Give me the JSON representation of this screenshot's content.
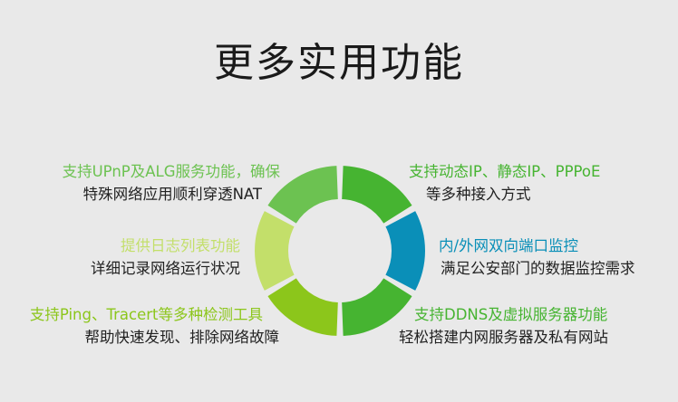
{
  "title": "更多实用功能",
  "colors": {
    "background": "#e9e9e9",
    "body_text": "#222222"
  },
  "features": [
    {
      "heading": "支持动态IP、静态IP、PPPoE",
      "detail": "等多种接入方式",
      "color": "#46b431",
      "side": "right"
    },
    {
      "heading": "内/外网双向端口监控",
      "detail": "满足公安部门的数据监控需求",
      "color": "#0a8fb8",
      "side": "right"
    },
    {
      "heading": "支持DDNS及虚拟服务器功能",
      "detail": "轻松搭建内网服务器及私有网站",
      "color": "#46b431",
      "side": "right"
    },
    {
      "heading": "支持Ping、Tracert等多种检测工具",
      "detail": "帮助快速发现、排除网络故障",
      "color": "#8cc61b",
      "side": "left"
    },
    {
      "heading": "提供日志列表功能",
      "detail": "详细记录网络运行状况",
      "color": "#c3df6a",
      "side": "left"
    },
    {
      "heading": "支持UPnP及ALG服务功能，确保",
      "detail": "特殊网络应用顺利穿透NAT",
      "color": "#6cc251",
      "side": "left"
    }
  ]
}
